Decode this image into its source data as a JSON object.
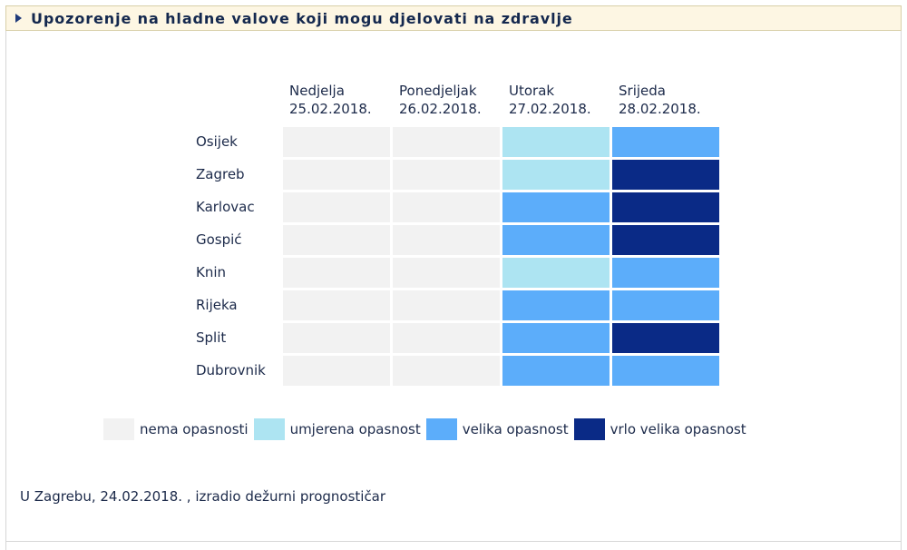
{
  "header": {
    "title": "Upozorenje na hladne valove koji mogu djelovati na zdravlje"
  },
  "colors": {
    "nema": "#f2f2f2",
    "umjerena": "#ade4f2",
    "velika": "#5cadfa",
    "vrlo_velika": "#0a2a86"
  },
  "table": {
    "days": [
      {
        "name": "Nedjelja",
        "date": "25.02.2018."
      },
      {
        "name": "Ponedjeljak",
        "date": "26.02.2018."
      },
      {
        "name": "Utorak",
        "date": "27.02.2018."
      },
      {
        "name": "Srijeda",
        "date": "28.02.2018."
      }
    ],
    "cities": [
      "Osijek",
      "Zagreb",
      "Karlovac",
      "Gospić",
      "Knin",
      "Rijeka",
      "Split",
      "Dubrovnik"
    ],
    "levels": [
      [
        "nema",
        "nema",
        "umjerena",
        "velika"
      ],
      [
        "nema",
        "nema",
        "umjerena",
        "vrlo_velika"
      ],
      [
        "nema",
        "nema",
        "velika",
        "vrlo_velika"
      ],
      [
        "nema",
        "nema",
        "velika",
        "vrlo_velika"
      ],
      [
        "nema",
        "nema",
        "umjerena",
        "velika"
      ],
      [
        "nema",
        "nema",
        "velika",
        "velika"
      ],
      [
        "nema",
        "nema",
        "velika",
        "vrlo_velika"
      ],
      [
        "nema",
        "nema",
        "velika",
        "velika"
      ]
    ]
  },
  "legend": [
    {
      "key": "nema",
      "label": "nema opasnosti"
    },
    {
      "key": "umjerena",
      "label": "umjerena opasnost"
    },
    {
      "key": "velika",
      "label": "velika opasnost"
    },
    {
      "key": "vrlo_velika",
      "label": "vrlo velika opasnost"
    }
  ],
  "footer": {
    "text": "U Zagrebu, 24.02.2018. , izradio dežurni prognostičar"
  }
}
